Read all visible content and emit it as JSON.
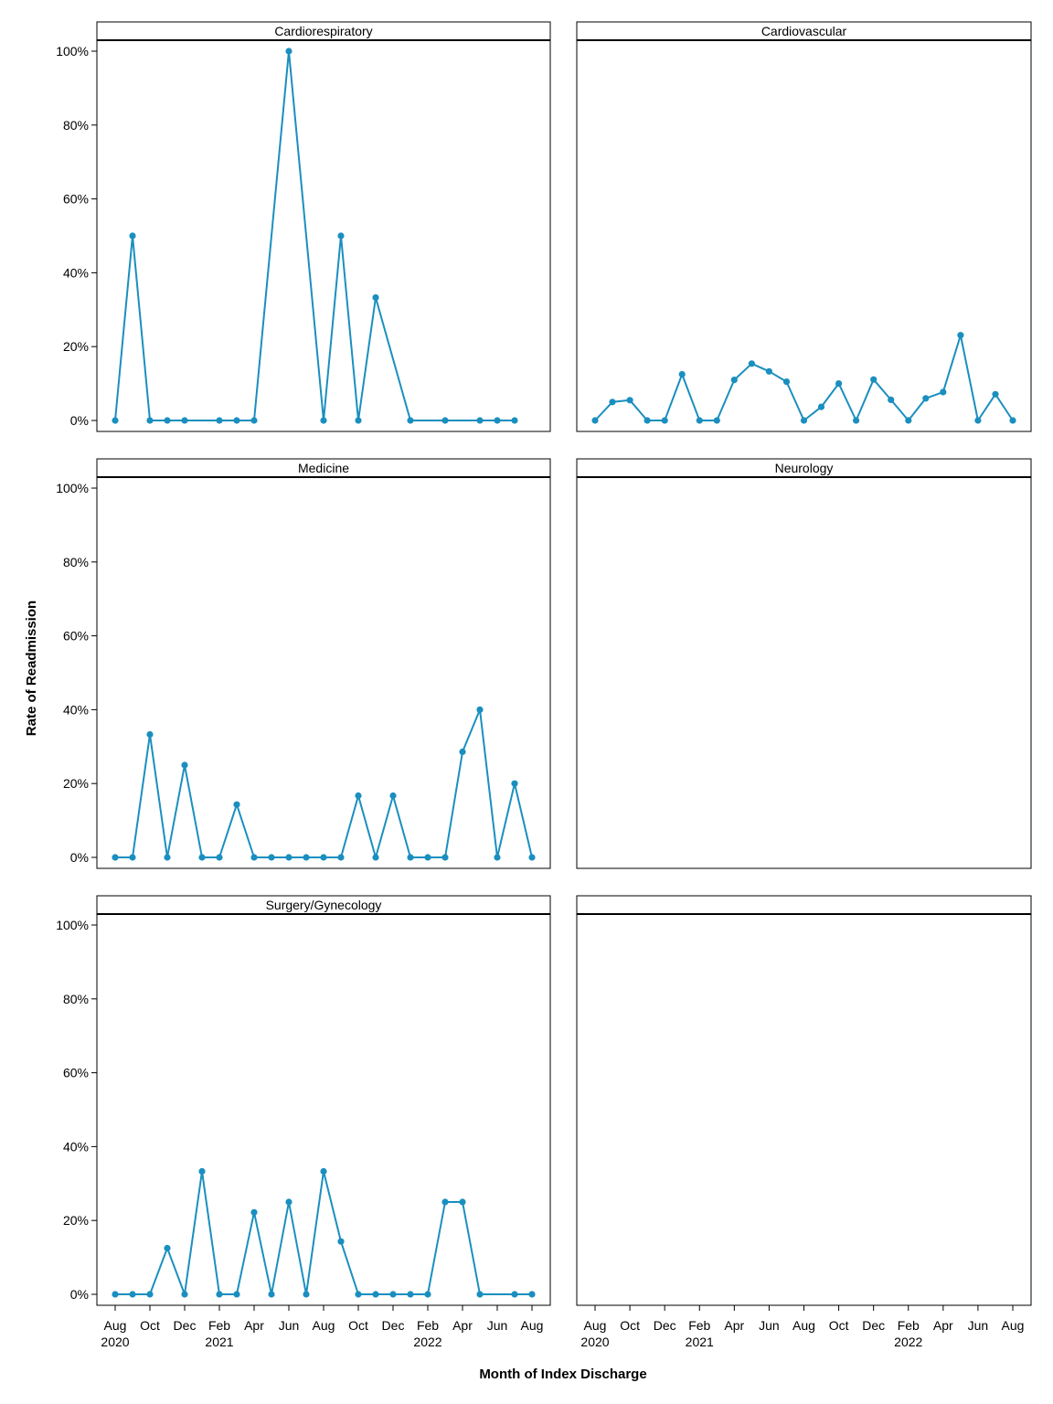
{
  "figure": {
    "ylabel": "Rate of Readmission",
    "xlabel": "Month of Index Discharge"
  },
  "colors": {
    "series": "#1a8fbf",
    "frame": "#000000"
  },
  "chart_data": {
    "type": "line",
    "layout": "faceted 3x2 panels (small multiples)",
    "ylim": [
      0,
      100
    ],
    "y_ticks": [
      "0%",
      "20%",
      "40%",
      "60%",
      "80%",
      "100%"
    ],
    "x_range": [
      "2020-08",
      "2022-08"
    ],
    "x_ticks": [
      {
        "month": "Aug",
        "year": "2020"
      },
      {
        "month": "Oct",
        "year": ""
      },
      {
        "month": "Dec",
        "year": ""
      },
      {
        "month": "Feb",
        "year": "2021"
      },
      {
        "month": "Apr",
        "year": ""
      },
      {
        "month": "Jun",
        "year": ""
      },
      {
        "month": "Aug",
        "year": ""
      },
      {
        "month": "Oct",
        "year": ""
      },
      {
        "month": "Dec",
        "year": ""
      },
      {
        "month": "Feb",
        "year": "2022"
      },
      {
        "month": "Apr",
        "year": ""
      },
      {
        "month": "Jun",
        "year": ""
      },
      {
        "month": "Aug",
        "year": ""
      }
    ],
    "grid": false,
    "panels": [
      {
        "title": "Cardiorespiratory",
        "points": [
          {
            "x": "2020-08",
            "y": 0
          },
          {
            "x": "2020-09",
            "y": 50
          },
          {
            "x": "2020-10",
            "y": 0
          },
          {
            "x": "2020-11",
            "y": 0
          },
          {
            "x": "2020-12",
            "y": 0
          },
          {
            "x": "2021-02",
            "y": 0
          },
          {
            "x": "2021-03",
            "y": 0
          },
          {
            "x": "2021-04",
            "y": 0
          },
          {
            "x": "2021-06",
            "y": 100
          },
          {
            "x": "2021-08",
            "y": 0
          },
          {
            "x": "2021-09",
            "y": 50
          },
          {
            "x": "2021-10",
            "y": 0
          },
          {
            "x": "2021-11",
            "y": 33.3
          },
          {
            "x": "2022-01",
            "y": 0
          },
          {
            "x": "2022-03",
            "y": 0
          },
          {
            "x": "2022-05",
            "y": 0
          },
          {
            "x": "2022-06",
            "y": 0
          },
          {
            "x": "2022-07",
            "y": 0
          }
        ]
      },
      {
        "title": "Cardiovascular",
        "points": [
          {
            "x": "2020-08",
            "y": 0
          },
          {
            "x": "2020-09",
            "y": 5
          },
          {
            "x": "2020-10",
            "y": 5.5
          },
          {
            "x": "2020-11",
            "y": 0
          },
          {
            "x": "2020-12",
            "y": 0
          },
          {
            "x": "2021-01",
            "y": 12.5
          },
          {
            "x": "2021-02",
            "y": 0
          },
          {
            "x": "2021-03",
            "y": 0
          },
          {
            "x": "2021-04",
            "y": 11
          },
          {
            "x": "2021-05",
            "y": 15.4
          },
          {
            "x": "2021-06",
            "y": 13.3
          },
          {
            "x": "2021-07",
            "y": 10.5
          },
          {
            "x": "2021-08",
            "y": 0
          },
          {
            "x": "2021-09",
            "y": 3.7
          },
          {
            "x": "2021-10",
            "y": 10
          },
          {
            "x": "2021-11",
            "y": 0
          },
          {
            "x": "2021-12",
            "y": 11.1
          },
          {
            "x": "2022-01",
            "y": 5.6
          },
          {
            "x": "2022-02",
            "y": 0
          },
          {
            "x": "2022-03",
            "y": 6
          },
          {
            "x": "2022-04",
            "y": 7.7
          },
          {
            "x": "2022-05",
            "y": 23.1
          },
          {
            "x": "2022-06",
            "y": 0
          },
          {
            "x": "2022-07",
            "y": 7.1
          },
          {
            "x": "2022-08",
            "y": 0
          }
        ]
      },
      {
        "title": "Medicine",
        "points": [
          {
            "x": "2020-08",
            "y": 0
          },
          {
            "x": "2020-09",
            "y": 0
          },
          {
            "x": "2020-10",
            "y": 33.3
          },
          {
            "x": "2020-11",
            "y": 0
          },
          {
            "x": "2020-12",
            "y": 25
          },
          {
            "x": "2021-01",
            "y": 0
          },
          {
            "x": "2021-02",
            "y": 0
          },
          {
            "x": "2021-03",
            "y": 14.3
          },
          {
            "x": "2021-04",
            "y": 0
          },
          {
            "x": "2021-05",
            "y": 0
          },
          {
            "x": "2021-06",
            "y": 0
          },
          {
            "x": "2021-07",
            "y": 0
          },
          {
            "x": "2021-08",
            "y": 0
          },
          {
            "x": "2021-09",
            "y": 0
          },
          {
            "x": "2021-10",
            "y": 16.7
          },
          {
            "x": "2021-11",
            "y": 0
          },
          {
            "x": "2021-12",
            "y": 16.7
          },
          {
            "x": "2022-01",
            "y": 0
          },
          {
            "x": "2022-02",
            "y": 0
          },
          {
            "x": "2022-03",
            "y": 0
          },
          {
            "x": "2022-04",
            "y": 28.6
          },
          {
            "x": "2022-05",
            "y": 40
          },
          {
            "x": "2022-06",
            "y": 0
          },
          {
            "x": "2022-07",
            "y": 20
          },
          {
            "x": "2022-08",
            "y": 0
          }
        ]
      },
      {
        "title": "Neurology",
        "points": []
      },
      {
        "title": "Surgery/Gynecology",
        "points": [
          {
            "x": "2020-08",
            "y": 0
          },
          {
            "x": "2020-09",
            "y": 0
          },
          {
            "x": "2020-10",
            "y": 0
          },
          {
            "x": "2020-11",
            "y": 12.5
          },
          {
            "x": "2020-12",
            "y": 0
          },
          {
            "x": "2021-01",
            "y": 33.3
          },
          {
            "x": "2021-02",
            "y": 0
          },
          {
            "x": "2021-03",
            "y": 0
          },
          {
            "x": "2021-04",
            "y": 22.2
          },
          {
            "x": "2021-05",
            "y": 0
          },
          {
            "x": "2021-06",
            "y": 25
          },
          {
            "x": "2021-07",
            "y": 0
          },
          {
            "x": "2021-08",
            "y": 33.3
          },
          {
            "x": "2021-09",
            "y": 14.3
          },
          {
            "x": "2021-10",
            "y": 0
          },
          {
            "x": "2021-11",
            "y": 0
          },
          {
            "x": "2021-12",
            "y": 0
          },
          {
            "x": "2022-01",
            "y": 0
          },
          {
            "x": "2022-02",
            "y": 0
          },
          {
            "x": "2022-03",
            "y": 25
          },
          {
            "x": "2022-04",
            "y": 25
          },
          {
            "x": "2022-05",
            "y": 0
          },
          {
            "x": "2022-07",
            "y": 0
          },
          {
            "x": "2022-08",
            "y": 0
          }
        ]
      },
      {
        "title": "",
        "points": []
      }
    ]
  }
}
